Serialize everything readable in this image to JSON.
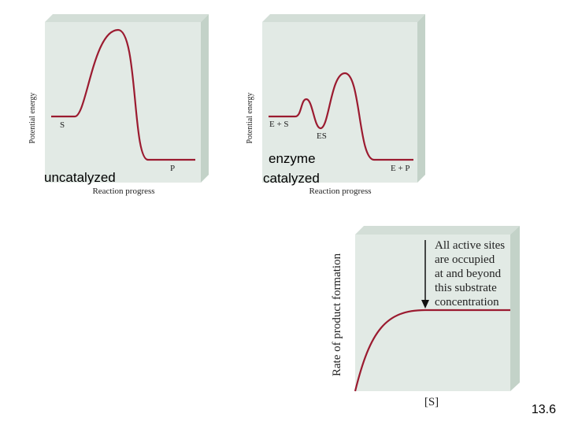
{
  "panels": [
    {
      "y_label": "Potential energy",
      "x_label": "Reaction progress",
      "labels": [
        "S",
        "P"
      ],
      "caption": [
        "uncatalyzed"
      ]
    },
    {
      "y_label": "Potential energy",
      "x_label": "Reaction progress",
      "labels": [
        "E + S",
        "ES",
        "E + P"
      ],
      "caption": [
        "enzyme",
        "catalyzed"
      ]
    },
    {
      "y_label": "Rate of product formation",
      "x_label": "[S]",
      "annotation": [
        "All active sites",
        "are occupied",
        "at and beyond",
        "this substrate",
        "concentration"
      ]
    }
  ],
  "slide_number": "13.6"
}
